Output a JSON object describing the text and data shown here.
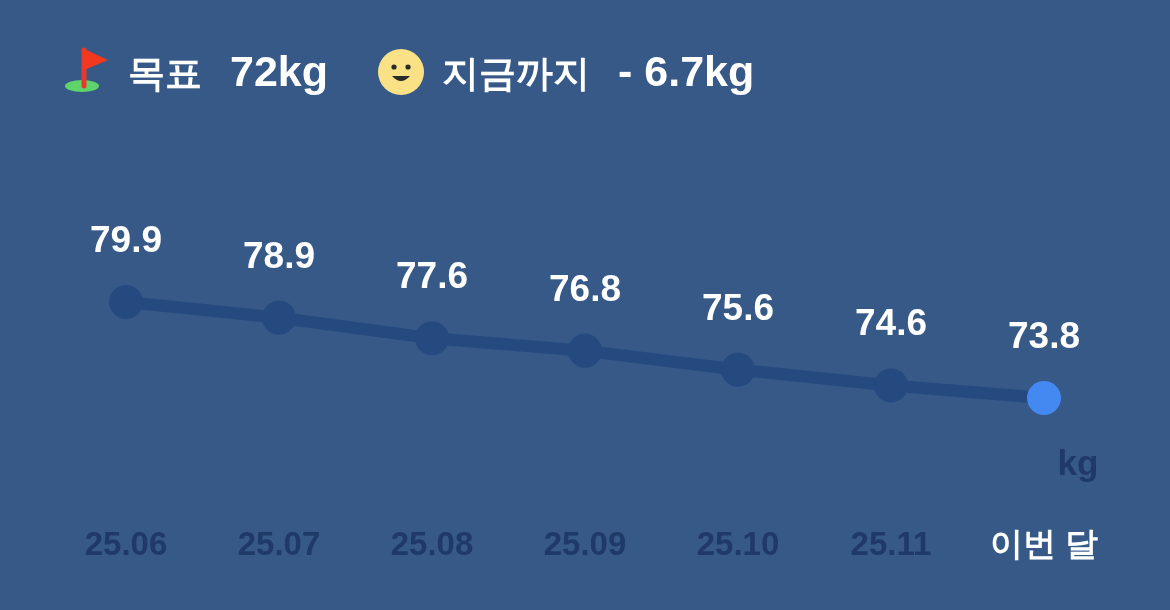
{
  "chart_data": {
    "type": "line",
    "categories": [
      "25.06",
      "25.07",
      "25.08",
      "25.09",
      "25.10",
      "25.11",
      "이번 달"
    ],
    "series": [
      {
        "color": "#244a80",
        "colors": [
          "#244a80",
          "#244a80",
          "#244a80",
          "#244a80",
          "#244a80",
          "#244a80",
          "#4489f2"
        ],
        "values": [
          79.9,
          78.9,
          77.6,
          76.8,
          75.6,
          74.6,
          73.8
        ]
      }
    ],
    "data_labels": true,
    "marker": "circle",
    "line_style": "solid",
    "annotations": [
      "목표",
      "72kg",
      "지금까지",
      "- 6.7kg",
      "kg"
    ]
  }
}
